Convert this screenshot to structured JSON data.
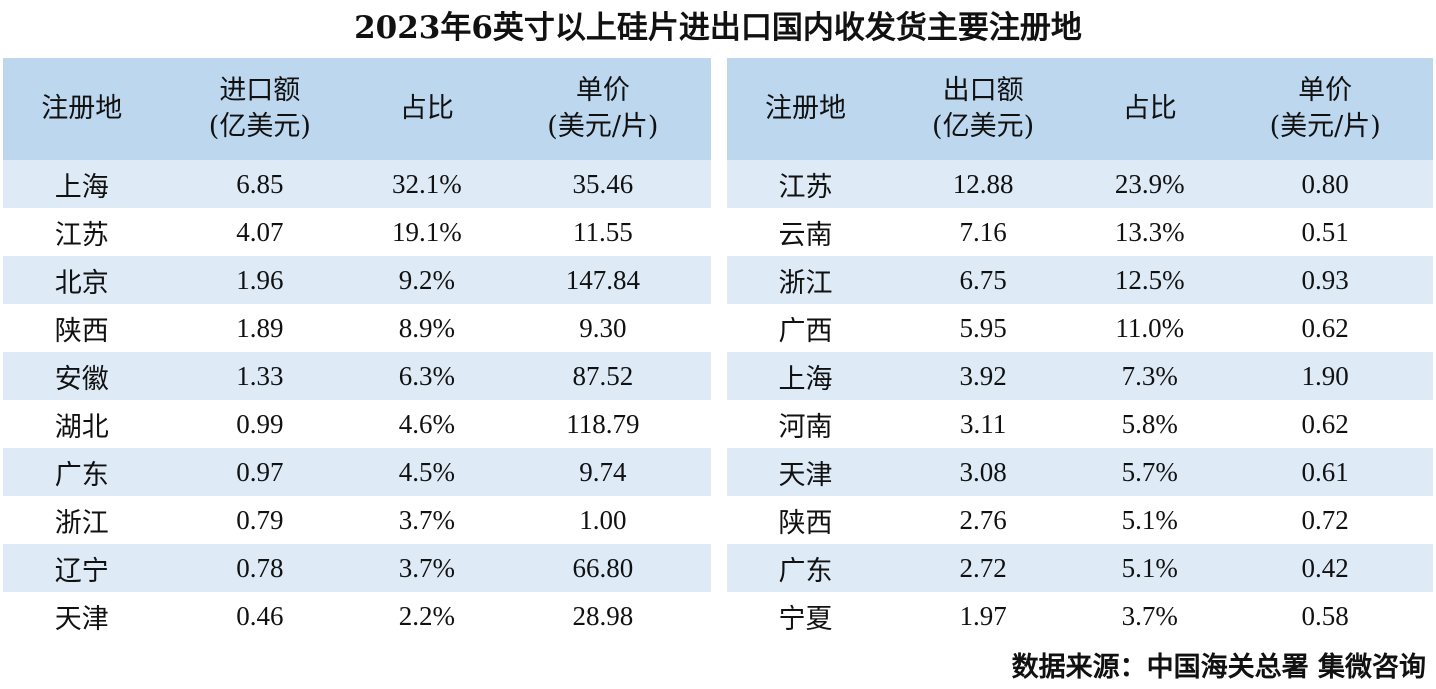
{
  "chart_data": {
    "type": "table",
    "title": "2023年6英寸以上硅片进出口国内收发货主要注册地",
    "tables": [
      {
        "headers": [
          "注册地",
          "进口额\n(亿美元)",
          "占比",
          "单价\n(美元/片)"
        ],
        "rows": [
          [
            "上海",
            "6.85",
            "32.1%",
            "35.46"
          ],
          [
            "江苏",
            "4.07",
            "19.1%",
            "11.55"
          ],
          [
            "北京",
            "1.96",
            "9.2%",
            "147.84"
          ],
          [
            "陕西",
            "1.89",
            "8.9%",
            "9.30"
          ],
          [
            "安徽",
            "1.33",
            "6.3%",
            "87.52"
          ],
          [
            "湖北",
            "0.99",
            "4.6%",
            "118.79"
          ],
          [
            "广东",
            "0.97",
            "4.5%",
            "9.74"
          ],
          [
            "浙江",
            "0.79",
            "3.7%",
            "1.00"
          ],
          [
            "辽宁",
            "0.78",
            "3.7%",
            "66.80"
          ],
          [
            "天津",
            "0.46",
            "2.2%",
            "28.98"
          ]
        ]
      },
      {
        "headers": [
          "注册地",
          "出口额\n(亿美元)",
          "占比",
          "单价\n(美元/片)"
        ],
        "rows": [
          [
            "江苏",
            "12.88",
            "23.9%",
            "0.80"
          ],
          [
            "云南",
            "7.16",
            "13.3%",
            "0.51"
          ],
          [
            "浙江",
            "6.75",
            "12.5%",
            "0.93"
          ],
          [
            "广西",
            "5.95",
            "11.0%",
            "0.62"
          ],
          [
            "上海",
            "3.92",
            "7.3%",
            "1.90"
          ],
          [
            "河南",
            "3.11",
            "5.8%",
            "0.62"
          ],
          [
            "天津",
            "3.08",
            "5.7%",
            "0.61"
          ],
          [
            "陕西",
            "2.76",
            "5.1%",
            "0.72"
          ],
          [
            "广东",
            "2.72",
            "5.1%",
            "0.42"
          ],
          [
            "宁夏",
            "1.97",
            "3.7%",
            "0.58"
          ]
        ]
      }
    ],
    "source": "数据来源：中国海关总署  集微咨询",
    "colors": {
      "header": "#bdd7ee",
      "alt_row": "#deebf7"
    }
  }
}
